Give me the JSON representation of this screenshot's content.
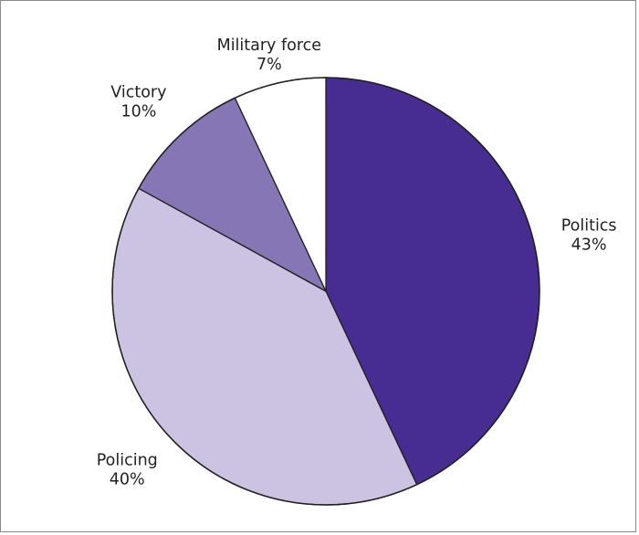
{
  "chart_data": {
    "type": "pie",
    "title": "",
    "start_angle_deg": 0,
    "direction": "clockwise",
    "slices": [
      {
        "label": "Politics",
        "value": 43,
        "value_label": "43%",
        "color": "#472c91"
      },
      {
        "label": "Policing",
        "value": 40,
        "value_label": "40%",
        "color": "#cbc3e1"
      },
      {
        "label": "Victory",
        "value": 10,
        "value_label": "10%",
        "color": "#8676b6"
      },
      {
        "label": "Military force",
        "value": 7,
        "value_label": "7%",
        "color": "#ffffff"
      }
    ],
    "outline_color": "#231f20",
    "labels_outside": true
  }
}
